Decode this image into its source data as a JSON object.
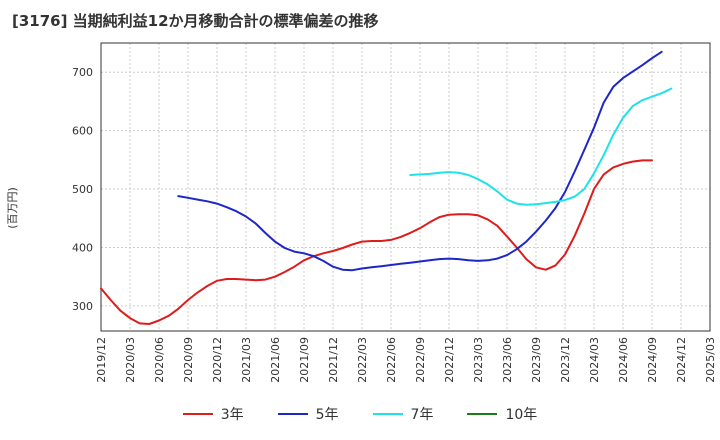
{
  "chart_data": {
    "type": "line",
    "title": "[3176]  当期純利益12か月移動合計の標準偏差の推移",
    "ylabel": "(百万円)",
    "xlabel": "",
    "ylim": [
      257,
      750
    ],
    "yticks": [
      300,
      400,
      500,
      600,
      700
    ],
    "grid": true,
    "legend_position": "bottom",
    "x_start": "2019-12",
    "x_end": "2025-03",
    "xticks": [
      "2019/12",
      "2020/03",
      "2020/06",
      "2020/09",
      "2020/12",
      "2021/03",
      "2021/06",
      "2021/09",
      "2021/12",
      "2022/03",
      "2022/06",
      "2022/09",
      "2022/12",
      "2023/03",
      "2023/06",
      "2023/09",
      "2023/12",
      "2024/03",
      "2024/06",
      "2024/09",
      "2024/12",
      "2025/03"
    ],
    "series": [
      {
        "name": "3年",
        "color": "#dd1c1c",
        "start": "2019-12",
        "values": [
          330,
          310,
          292,
          279,
          270,
          269,
          275,
          283,
          295,
          310,
          323,
          334,
          343,
          346,
          346,
          345,
          344,
          345,
          350,
          358,
          367,
          378,
          385,
          390,
          394,
          399,
          405,
          410,
          411,
          411,
          413,
          418,
          425,
          433,
          443,
          452,
          456,
          457,
          457,
          455,
          448,
          437,
          419,
          400,
          380,
          366,
          362,
          369,
          388,
          420,
          458,
          500,
          525,
          537,
          543,
          547,
          549,
          549
        ]
      },
      {
        "name": "5年",
        "color": "#1d26c9",
        "start": "2020-08",
        "values": [
          488,
          485,
          482,
          479,
          475,
          469,
          462,
          453,
          441,
          425,
          410,
          399,
          393,
          390,
          385,
          377,
          367,
          362,
          361,
          364,
          366,
          368,
          370,
          372,
          374,
          376,
          378,
          380,
          381,
          380,
          378,
          377,
          378,
          381,
          387,
          397,
          410,
          427,
          446,
          467,
          495,
          530,
          567,
          605,
          648,
          675,
          690,
          701,
          712,
          724,
          735
        ]
      },
      {
        "name": "7年",
        "color": "#1fe2e8",
        "start": "2022-08",
        "values": [
          524,
          525,
          526,
          528,
          529,
          528,
          524,
          517,
          508,
          496,
          482,
          475,
          473,
          474,
          476,
          478,
          481,
          487,
          500,
          527,
          558,
          593,
          622,
          642,
          652,
          658,
          664,
          672
        ]
      },
      {
        "name": "10年",
        "color": "#1d7d1d",
        "start": "2019-12",
        "values": []
      }
    ]
  }
}
